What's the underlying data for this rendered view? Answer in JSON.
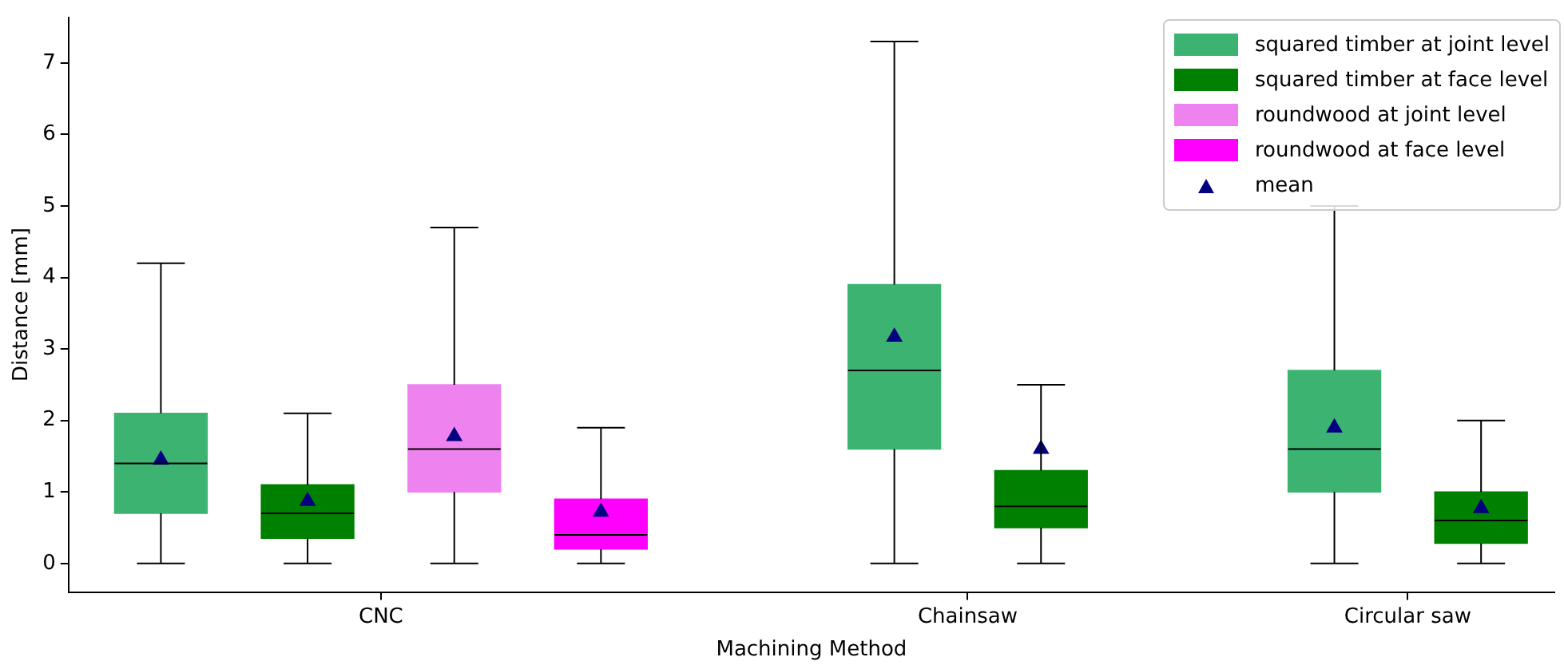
{
  "chart_data": {
    "type": "box",
    "xlabel": "Machining Method",
    "ylabel": "Distance [mm]",
    "categories": [
      "CNC",
      "Chainsaw",
      "Circular saw"
    ],
    "ylim": [
      -0.4,
      7.64
    ],
    "yticks": [
      0,
      1,
      2,
      3,
      4,
      5,
      6,
      7
    ],
    "grid": false,
    "legend": "top right",
    "series": [
      {
        "name": "squared timber at joint level",
        "color": "#3cb371",
        "boxes": [
          {
            "low": 0,
            "q1": 0.7,
            "median": 1.4,
            "q3": 2.1,
            "high": 4.2
          },
          {
            "low": 0,
            "q1": 1.6,
            "median": 2.7,
            "q3": 3.9,
            "high": 7.3
          },
          {
            "low": 0,
            "q1": 1.0,
            "median": 1.6,
            "q3": 2.7,
            "high": 5.0
          }
        ]
      },
      {
        "name": "squared timber at face level",
        "color": "#008000",
        "boxes": [
          {
            "low": 0,
            "q1": 0.35,
            "median": 0.7,
            "q3": 1.1,
            "high": 2.1
          },
          {
            "low": 0,
            "q1": 0.5,
            "median": 0.8,
            "q3": 1.3,
            "high": 2.5
          },
          {
            "low": 0,
            "q1": 0.28,
            "median": 0.6,
            "q3": 1.0,
            "high": 2.0
          }
        ]
      },
      {
        "name": "roundwood at joint level",
        "color": "#ee82ee",
        "boxes": [
          {
            "low": 0,
            "q1": 1.0,
            "median": 1.6,
            "q3": 2.5,
            "high": 4.7
          },
          null,
          null
        ]
      },
      {
        "name": "roundwood at face level",
        "color": "#ff00ff",
        "boxes": [
          {
            "low": 0,
            "q1": 0.2,
            "median": 0.4,
            "q3": 0.9,
            "high": 1.9
          },
          null,
          null
        ]
      },
      {
        "name": "mean",
        "type": "scatter",
        "color": "#000080",
        "marker": "triangle",
        "x": [
          "CNC",
          "CNC",
          "CNC",
          "CNC",
          "Chainsaw",
          "Chainsaw",
          "Circular saw",
          "Circular saw"
        ],
        "values": [
          1.45,
          0.87,
          1.78,
          0.72,
          3.17,
          1.6,
          1.9,
          0.77
        ]
      }
    ]
  }
}
